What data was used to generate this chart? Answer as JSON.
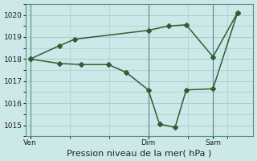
{
  "xlabel": "Pression niveau de la mer( hPa )",
  "bg_color": "#cce8e8",
  "grid_color": "#aacccc",
  "line_color": "#2d6030",
  "ylim": [
    1014.5,
    1020.5
  ],
  "yticks": [
    1015,
    1016,
    1017,
    1018,
    1019,
    1020
  ],
  "day_labels": [
    "Ven",
    "Dim",
    "Sam"
  ],
  "day_positions": [
    0.0,
    0.53,
    0.82
  ],
  "line1_x": [
    0.0,
    0.13,
    0.2,
    0.53,
    0.62,
    0.7,
    0.82,
    0.93
  ],
  "line1_y": [
    1018.0,
    1018.6,
    1018.9,
    1019.3,
    1019.5,
    1019.55,
    1018.1,
    1020.1
  ],
  "line2_x": [
    0.0,
    0.13,
    0.23,
    0.35,
    0.43,
    0.53,
    0.58,
    0.65,
    0.7,
    0.82,
    0.93
  ],
  "line2_y": [
    1018.0,
    1017.8,
    1017.75,
    1017.75,
    1017.4,
    1016.6,
    1015.05,
    1014.9,
    1016.6,
    1016.65,
    1020.1
  ],
  "xlim": [
    -0.02,
    1.0
  ],
  "marker_size": 3.0,
  "linewidth": 1.1,
  "tick_fontsize": 6.5,
  "xlabel_fontsize": 8.0
}
